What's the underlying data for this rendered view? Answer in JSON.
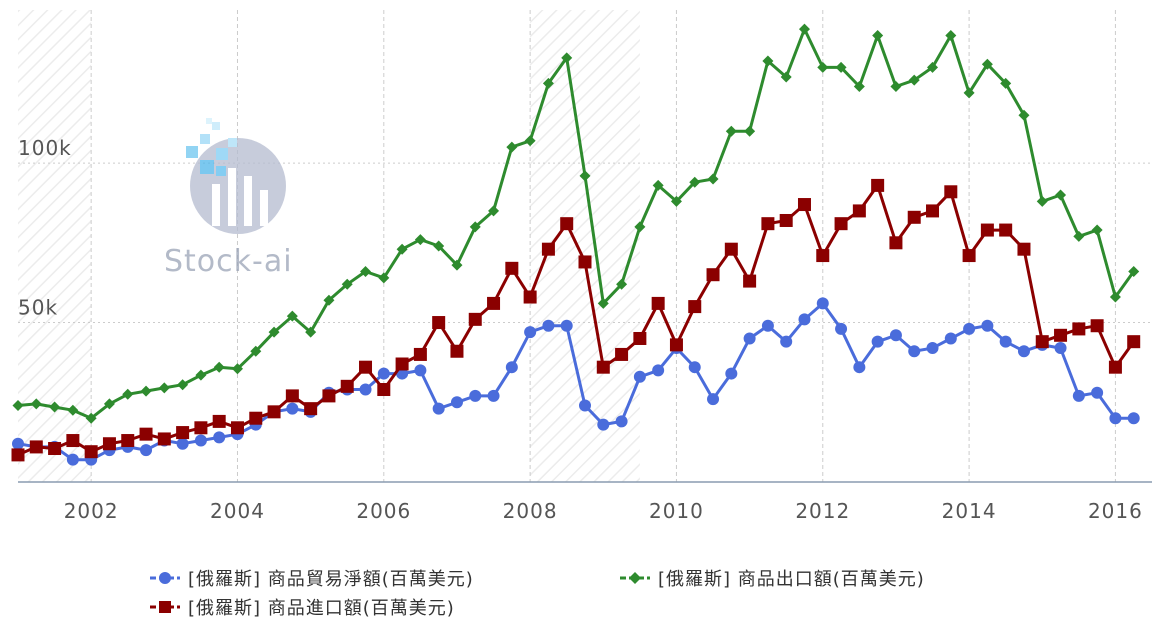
{
  "chart_data": {
    "type": "line",
    "x_tick_labels": [
      "2002",
      "2004",
      "2006",
      "2008",
      "2010",
      "2012",
      "2014",
      "2016"
    ],
    "y_tick_labels": [
      "50k",
      "100k"
    ],
    "y_ticks": [
      50000,
      100000
    ],
    "x_ticks": [
      2002,
      2004,
      2006,
      2008,
      2010,
      2012,
      2014,
      2016
    ],
    "xlim": [
      2001.0,
      2016.5
    ],
    "ylim": [
      0,
      148000
    ],
    "grid": true,
    "legend_position": "bottom",
    "recession_bands": [
      [
        2001.0,
        2002.0
      ],
      [
        2008.0,
        2009.5
      ]
    ],
    "x": [
      2001.0,
      2001.25,
      2001.5,
      2001.75,
      2002.0,
      2002.25,
      2002.5,
      2002.75,
      2003.0,
      2003.25,
      2003.5,
      2003.75,
      2004.0,
      2004.25,
      2004.5,
      2004.75,
      2005.0,
      2005.25,
      2005.5,
      2005.75,
      2006.0,
      2006.25,
      2006.5,
      2006.75,
      2007.0,
      2007.25,
      2007.5,
      2007.75,
      2008.0,
      2008.25,
      2008.5,
      2008.75,
      2009.0,
      2009.25,
      2009.5,
      2009.75,
      2010.0,
      2010.25,
      2010.5,
      2010.75,
      2011.0,
      2011.25,
      2011.5,
      2011.75,
      2012.0,
      2012.25,
      2012.5,
      2012.75,
      2013.0,
      2013.25,
      2013.5,
      2013.75,
      2014.0,
      2014.25,
      2014.5,
      2014.75,
      2015.0,
      2015.25,
      2015.5,
      2015.75,
      2016.0,
      2016.25
    ],
    "series": [
      {
        "name": "[俄羅斯] 商品貿易淨額(百萬美元)",
        "color": "#4a6cdb",
        "marker": "circle",
        "values": [
          12000,
          11000,
          11000,
          7000,
          7000,
          10000,
          11000,
          10000,
          13000,
          12000,
          13000,
          14000,
          15000,
          18000,
          22000,
          23000,
          22000,
          28000,
          29000,
          29000,
          34000,
          34000,
          35000,
          23000,
          25000,
          27000,
          27000,
          36000,
          47000,
          49000,
          49000,
          24000,
          18000,
          19000,
          33000,
          35000,
          42000,
          36000,
          26000,
          34000,
          45000,
          49000,
          44000,
          51000,
          56000,
          48000,
          36000,
          44000,
          46000,
          41000,
          42000,
          45000,
          48000,
          49000,
          44000,
          41000,
          43000,
          42000,
          27000,
          28000,
          20000,
          20000
        ]
      },
      {
        "name": "[俄羅斯] 商品出口額(百萬美元)",
        "color": "#2e8b2e",
        "marker": "diamond",
        "values": [
          24000,
          24500,
          23500,
          22500,
          20000,
          24500,
          27500,
          28500,
          29500,
          30500,
          33500,
          36000,
          35500,
          41000,
          47000,
          52000,
          47000,
          57000,
          62000,
          66000,
          64000,
          73000,
          76000,
          74000,
          68000,
          80000,
          85000,
          105000,
          107000,
          125000,
          133000,
          96000,
          56000,
          62000,
          80000,
          93000,
          88000,
          94000,
          95000,
          110000,
          110000,
          132000,
          127000,
          142000,
          130000,
          130000,
          124000,
          140000,
          124000,
          126000,
          130000,
          140000,
          122000,
          131000,
          125000,
          115000,
          88000,
          90000,
          77000,
          79000,
          58000,
          66000
        ]
      },
      {
        "name": "[俄羅斯] 商品進口額(百萬美元)",
        "color": "#8b0000",
        "marker": "square",
        "values": [
          8500,
          11000,
          10500,
          13000,
          9500,
          12000,
          13000,
          15000,
          13500,
          15500,
          17000,
          19000,
          17000,
          20000,
          22000,
          27000,
          23000,
          27000,
          30000,
          36000,
          29000,
          37000,
          40000,
          50000,
          41000,
          51000,
          56000,
          67000,
          58000,
          73000,
          81000,
          69000,
          36000,
          40000,
          45000,
          56000,
          43000,
          55000,
          65000,
          73000,
          63000,
          81000,
          82000,
          87000,
          71000,
          81000,
          85000,
          93000,
          75000,
          83000,
          85000,
          91000,
          71000,
          79000,
          79000,
          73000,
          44000,
          46000,
          48000,
          49000,
          36000,
          44000
        ]
      }
    ]
  },
  "legend": {
    "items": [
      {
        "label": "[俄羅斯] 商品貿易淨額(百萬美元)",
        "color": "#4a6cdb",
        "marker": "circle"
      },
      {
        "label": "[俄羅斯] 商品出口額(百萬美元)",
        "color": "#2e8b2e",
        "marker": "diamond"
      },
      {
        "label": "[俄羅斯] 商品進口額(百萬美元)",
        "color": "#8b0000",
        "marker": "square"
      }
    ]
  },
  "watermark": {
    "text": "Stock-ai",
    "icon": "stock-ai-logo-icon"
  }
}
